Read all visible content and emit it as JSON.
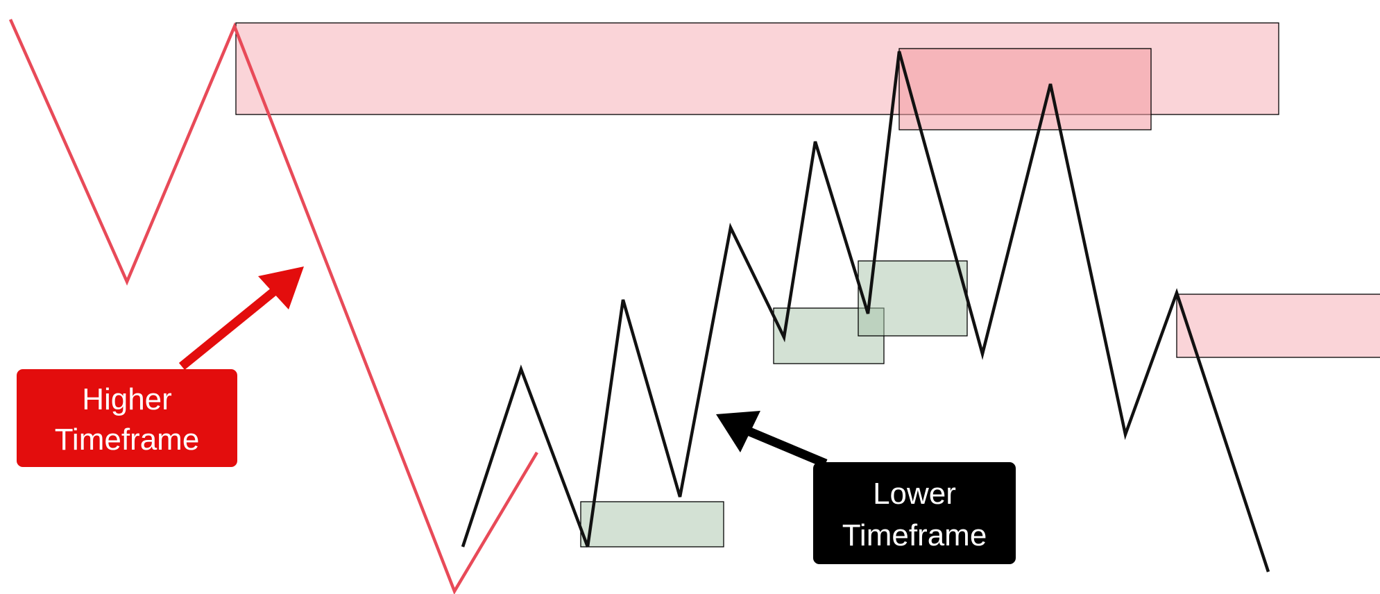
{
  "callouts": {
    "higher": {
      "line1": "Higher",
      "line2": "Timeframe",
      "color": "#e30d0d"
    },
    "lower": {
      "line1": "Lower",
      "line2": "Timeframe",
      "color": "#000000"
    }
  },
  "colors": {
    "higher_path": "#e84a58",
    "lower_path": "#111111",
    "supply_zone": "#f5a9b1",
    "demand_zone": "#a7c4a9"
  }
}
